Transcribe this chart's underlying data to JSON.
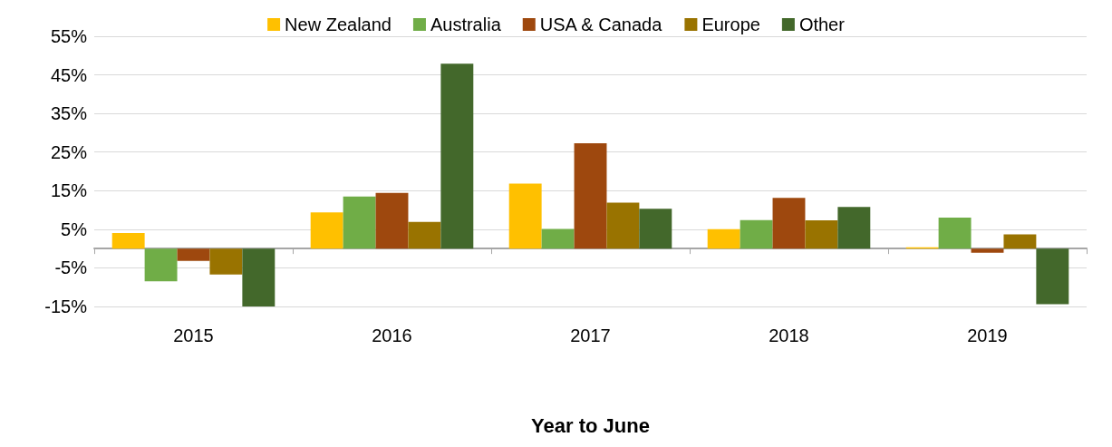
{
  "chart_data": {
    "type": "bar",
    "xlabel": "Year to June",
    "categories": [
      "2015",
      "2016",
      "2017",
      "2018",
      "2019"
    ],
    "series": [
      {
        "name": "New Zealand",
        "color": "#ffc000",
        "values": [
          4,
          9.4,
          16.8,
          5,
          0.3
        ]
      },
      {
        "name": "Australia",
        "color": "#70ad47",
        "values": [
          -8.5,
          13.5,
          5.1,
          7.4,
          8
        ]
      },
      {
        "name": "USA & Canada",
        "color": "#9e480e",
        "values": [
          -3.2,
          14.4,
          27.3,
          13.1,
          -1.1
        ]
      },
      {
        "name": "Europe",
        "color": "#997300",
        "values": [
          -6.7,
          6.9,
          11.9,
          7.3,
          3.7
        ]
      },
      {
        "name": "Other",
        "color": "#43682b",
        "values": [
          -15,
          47.9,
          10.3,
          10.8,
          -14.4
        ]
      }
    ],
    "ylim": [
      -15,
      55
    ],
    "yticks": [
      {
        "value": -15,
        "label": "-15%"
      },
      {
        "value": -5,
        "label": "-5%"
      },
      {
        "value": 5,
        "label": "5%"
      },
      {
        "value": 15,
        "label": "15%"
      },
      {
        "value": 25,
        "label": "25%"
      },
      {
        "value": 35,
        "label": "35%"
      },
      {
        "value": 45,
        "label": "45%"
      },
      {
        "value": 55,
        "label": "55%"
      }
    ],
    "grid": "y",
    "legend": "top"
  }
}
